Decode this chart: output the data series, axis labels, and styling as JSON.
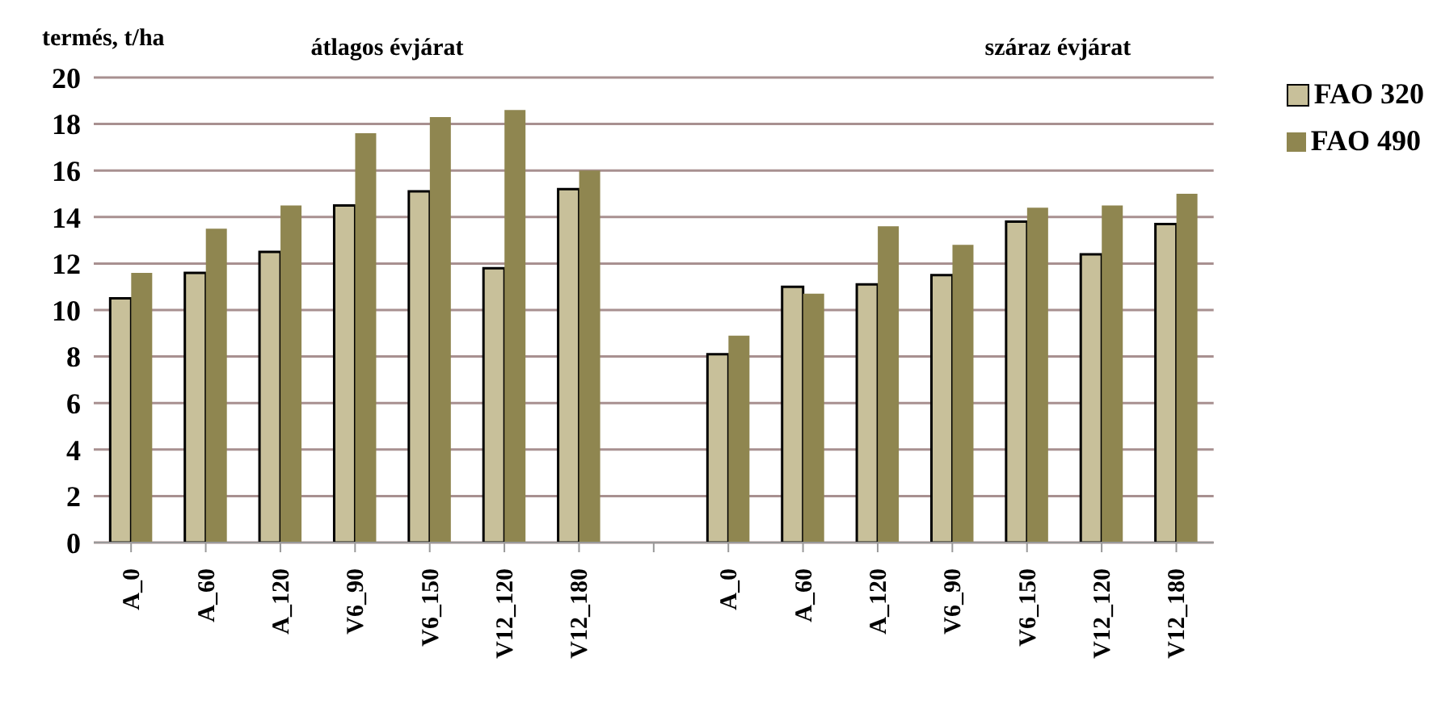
{
  "chart_data": {
    "type": "bar",
    "ylabel": "termés, t/ha",
    "annotations": [
      "átlagos évjárat",
      "száraz évjárat"
    ],
    "categories": [
      "A_0",
      "A_60",
      "A_120",
      "V6_90",
      "V6_150",
      "V12_120",
      "V12_180",
      null,
      "A_0",
      "A_60",
      "A_120",
      "V6_90",
      "V6_150",
      "V12_120",
      "V12_180"
    ],
    "series": [
      {
        "name": "FAO 320",
        "color": "#c8c09a",
        "values": [
          10.5,
          11.6,
          12.5,
          14.5,
          15.1,
          11.8,
          15.2,
          null,
          8.1,
          11.0,
          11.1,
          11.5,
          13.8,
          12.4,
          13.7
        ]
      },
      {
        "name": "FAO 490",
        "color": "#8f8650",
        "values": [
          11.6,
          13.5,
          14.5,
          17.6,
          18.3,
          18.6,
          16.0,
          null,
          8.9,
          10.7,
          13.6,
          12.8,
          14.4,
          14.5,
          15.0
        ]
      }
    ],
    "ylim": [
      0,
      20
    ],
    "yticks": [
      0,
      2,
      4,
      6,
      8,
      10,
      12,
      14,
      16,
      18,
      20
    ],
    "grid": "y",
    "legend": "top right"
  }
}
